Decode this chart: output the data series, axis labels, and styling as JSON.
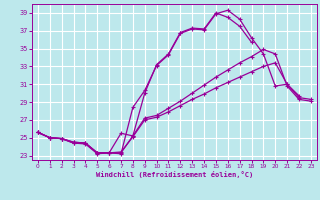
{
  "xlabel": "Windchill (Refroidissement éolien,°C)",
  "ylabel": "",
  "xlim": [
    -0.5,
    23.5
  ],
  "ylim": [
    22.5,
    40.0
  ],
  "xticks": [
    0,
    1,
    2,
    3,
    4,
    5,
    6,
    7,
    8,
    9,
    10,
    11,
    12,
    13,
    14,
    15,
    16,
    17,
    18,
    19,
    20,
    21,
    22,
    23
  ],
  "yticks": [
    23,
    25,
    27,
    29,
    31,
    33,
    35,
    37,
    39
  ],
  "bg_color": "#bde8ec",
  "line_color": "#990099",
  "grid_color": "#ffffff",
  "lines": [
    {
      "x": [
        0,
        1,
        2,
        3,
        4,
        5,
        6,
        7,
        8,
        9,
        10,
        11,
        12,
        13,
        14,
        15,
        16,
        17,
        18,
        19,
        20,
        21,
        22
      ],
      "y": [
        25.6,
        25.0,
        24.9,
        24.4,
        24.4,
        23.3,
        23.3,
        23.2,
        28.4,
        30.3,
        33.1,
        34.3,
        36.7,
        37.2,
        37.1,
        38.9,
        39.3,
        38.3,
        36.2,
        34.4,
        30.8,
        31.0,
        29.7
      ]
    },
    {
      "x": [
        0,
        1,
        2,
        3,
        4,
        5,
        6,
        7,
        8,
        9,
        10,
        11,
        12,
        13,
        14,
        15,
        16,
        17,
        18
      ],
      "y": [
        25.6,
        25.0,
        24.9,
        24.4,
        24.3,
        23.2,
        23.3,
        25.5,
        25.2,
        30.0,
        33.2,
        34.4,
        36.8,
        37.3,
        37.2,
        39.0,
        38.5,
        37.5,
        35.7
      ]
    },
    {
      "x": [
        0,
        1,
        2,
        3,
        4,
        5,
        6,
        7,
        8,
        9,
        10,
        11,
        12,
        13,
        14,
        15,
        16,
        17,
        18,
        19,
        20,
        21,
        22,
        23
      ],
      "y": [
        25.6,
        25.0,
        24.9,
        24.5,
        24.4,
        23.3,
        23.3,
        23.3,
        25.2,
        27.2,
        27.5,
        28.3,
        29.1,
        30.0,
        30.9,
        31.8,
        32.6,
        33.4,
        34.1,
        34.9,
        34.4,
        30.8,
        29.3,
        29.1
      ]
    },
    {
      "x": [
        0,
        1,
        2,
        3,
        4,
        5,
        6,
        7,
        8,
        9,
        10,
        11,
        12,
        13,
        14,
        15,
        16,
        17,
        18,
        19,
        20,
        21,
        22,
        23
      ],
      "y": [
        25.6,
        25.0,
        24.9,
        24.5,
        24.4,
        23.3,
        23.3,
        23.4,
        25.1,
        27.0,
        27.3,
        27.9,
        28.6,
        29.3,
        29.9,
        30.6,
        31.2,
        31.8,
        32.4,
        33.0,
        33.4,
        31.0,
        29.5,
        29.3
      ]
    }
  ]
}
